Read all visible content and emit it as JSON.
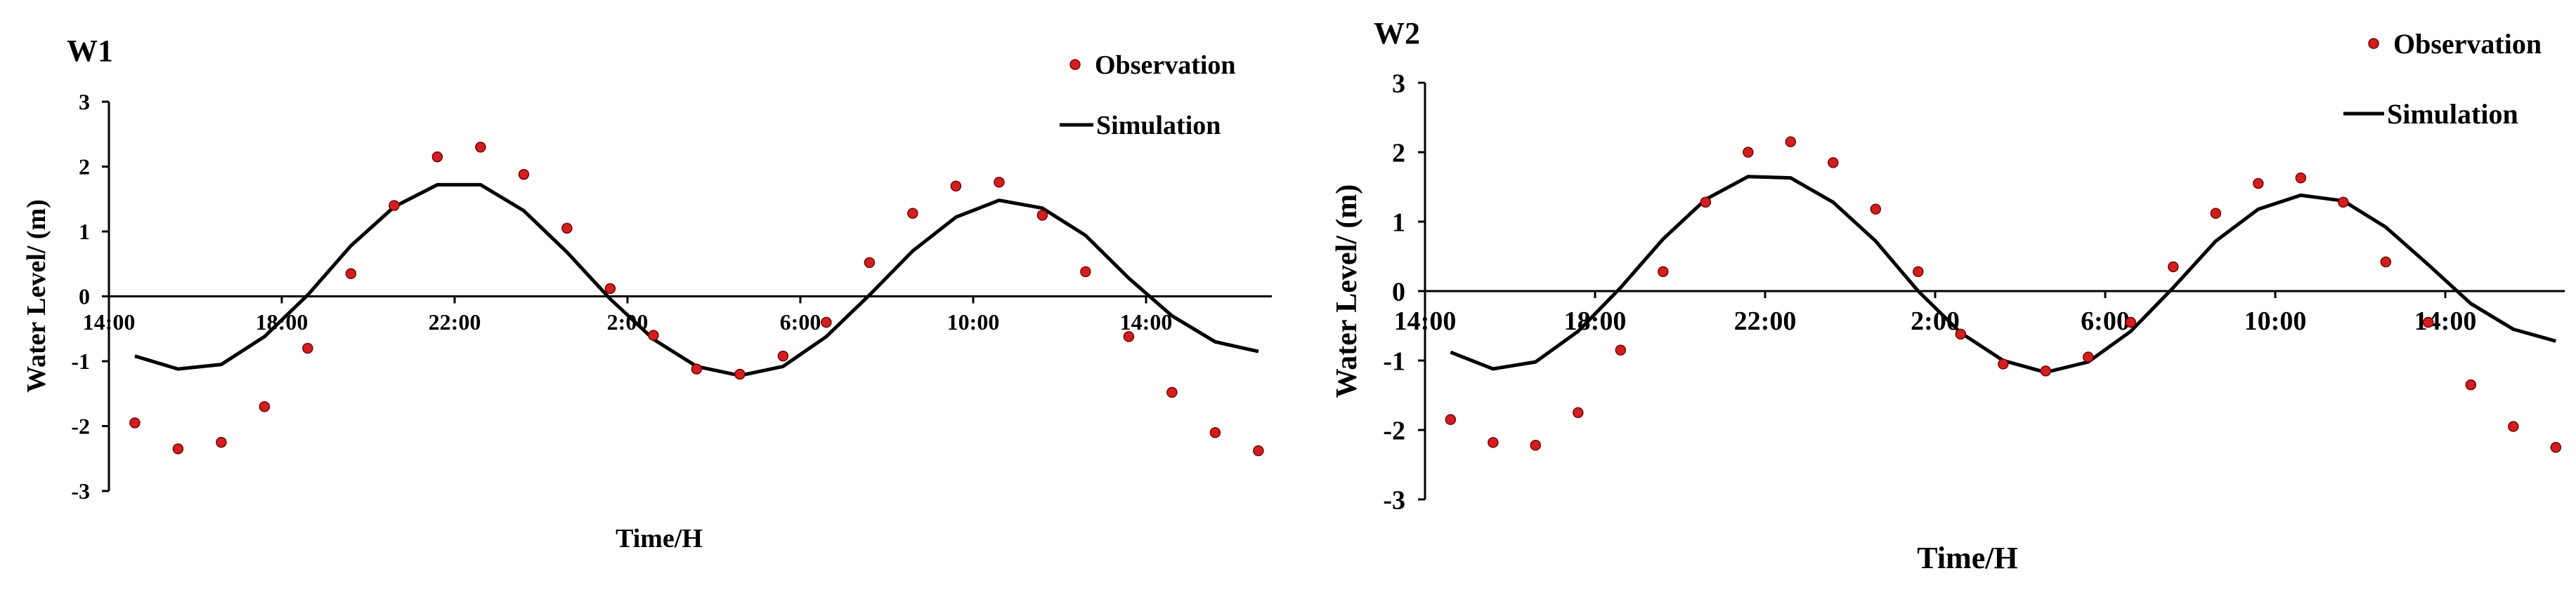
{
  "chart_data": [
    {
      "type": "line",
      "title": "W1",
      "xlabel": "Time/H",
      "ylabel": "Water Level/  (m)",
      "ylim": [
        -3,
        3
      ],
      "yticks": [
        -3,
        -2,
        -1,
        0,
        1,
        2,
        3
      ],
      "xticks": [
        {
          "x": 0,
          "label": "14:00"
        },
        {
          "x": 4,
          "label": "18:00"
        },
        {
          "x": 8,
          "label": "22:00"
        },
        {
          "x": 12,
          "label": "2:00"
        },
        {
          "x": 16,
          "label": "6:00"
        },
        {
          "x": 20,
          "label": "10:00"
        },
        {
          "x": 24,
          "label": "14:00"
        }
      ],
      "legend": {
        "observation": "Observation",
        "simulation": "Simulation",
        "placement": "top-right"
      },
      "series": [
        {
          "name": "Observation",
          "kind": "scatter",
          "color": "#d11f1f",
          "x": [
            0.6,
            1.6,
            2.6,
            3.6,
            4.6,
            5.6,
            6.6,
            7.6,
            8.6,
            9.6,
            10.6,
            11.6,
            12.6,
            13.6,
            14.6,
            15.6,
            16.6,
            17.6,
            18.6,
            19.6,
            20.6,
            21.6,
            22.6,
            23.6,
            24.6,
            25.6,
            26.6
          ],
          "values": [
            -1.95,
            -2.35,
            -2.25,
            -1.7,
            -0.8,
            0.35,
            1.4,
            2.15,
            2.3,
            1.88,
            1.05,
            0.12,
            -0.6,
            -1.12,
            -1.2,
            -0.92,
            -0.4,
            0.52,
            1.28,
            1.7,
            1.76,
            1.25,
            0.38,
            -0.62,
            -1.48,
            -2.1,
            -2.38
          ]
        },
        {
          "name": "Simulation",
          "kind": "line",
          "color": "#000000",
          "x": [
            0.6,
            1.6,
            2.6,
            3.6,
            4.6,
            5.6,
            6.6,
            7.6,
            8.6,
            9.6,
            10.6,
            11.6,
            12.6,
            13.6,
            14.6,
            15.6,
            16.6,
            17.6,
            18.6,
            19.6,
            20.6,
            21.6,
            22.6,
            23.6,
            24.6,
            25.6,
            26.6
          ],
          "values": [
            -0.92,
            -1.12,
            -1.05,
            -0.62,
            0.02,
            0.78,
            1.38,
            1.72,
            1.72,
            1.32,
            0.68,
            -0.04,
            -0.66,
            -1.08,
            -1.22,
            -1.08,
            -0.62,
            0.02,
            0.7,
            1.22,
            1.48,
            1.36,
            0.94,
            0.28,
            -0.3,
            -0.7,
            -0.85
          ]
        }
      ]
    },
    {
      "type": "line",
      "title": "W2",
      "xlabel": "Time/H",
      "ylabel": "Water Level/  (m)",
      "ylim": [
        -3,
        3
      ],
      "yticks": [
        -3,
        -2,
        -1,
        0,
        1,
        2,
        3
      ],
      "xticks": [
        {
          "x": 0,
          "label": "14:00"
        },
        {
          "x": 4,
          "label": "18:00"
        },
        {
          "x": 8,
          "label": "22:00"
        },
        {
          "x": 12,
          "label": "2:00"
        },
        {
          "x": 16,
          "label": "6:00"
        },
        {
          "x": 20,
          "label": "10:00"
        },
        {
          "x": 24,
          "label": "14:00"
        }
      ],
      "legend": {
        "observation": "Observation",
        "simulation": "Simulation",
        "placement": "top-right"
      },
      "series": [
        {
          "name": "Observation",
          "kind": "scatter",
          "color": "#d11f1f",
          "x": [
            0.6,
            1.6,
            2.6,
            3.6,
            4.6,
            5.6,
            6.6,
            7.6,
            8.6,
            9.6,
            10.6,
            11.6,
            12.6,
            13.6,
            14.6,
            15.6,
            16.6,
            17.6,
            18.6,
            19.6,
            20.6,
            21.6,
            22.6,
            23.6,
            24.6,
            25.6,
            26.6
          ],
          "values": [
            -1.85,
            -2.18,
            -2.22,
            -1.75,
            -0.85,
            0.28,
            1.28,
            2.0,
            2.15,
            1.85,
            1.18,
            0.28,
            -0.62,
            -1.05,
            -1.15,
            -0.95,
            -0.45,
            0.35,
            1.12,
            1.55,
            1.63,
            1.28,
            0.42,
            -0.45,
            -1.35,
            -1.95,
            -2.25
          ]
        },
        {
          "name": "Simulation",
          "kind": "line",
          "color": "#000000",
          "x": [
            0.6,
            1.6,
            2.6,
            3.6,
            4.6,
            5.6,
            6.6,
            7.6,
            8.6,
            9.6,
            10.6,
            11.6,
            12.6,
            13.6,
            14.6,
            15.6,
            16.6,
            17.6,
            18.6,
            19.6,
            20.6,
            21.6,
            22.6,
            23.6,
            24.6,
            25.6,
            26.6
          ],
          "values": [
            -0.88,
            -1.12,
            -1.02,
            -0.58,
            0.05,
            0.75,
            1.32,
            1.65,
            1.63,
            1.28,
            0.72,
            0.0,
            -0.6,
            -1.0,
            -1.17,
            -1.02,
            -0.58,
            0.05,
            0.72,
            1.18,
            1.38,
            1.3,
            0.92,
            0.38,
            -0.18,
            -0.55,
            -0.72
          ]
        }
      ]
    }
  ]
}
